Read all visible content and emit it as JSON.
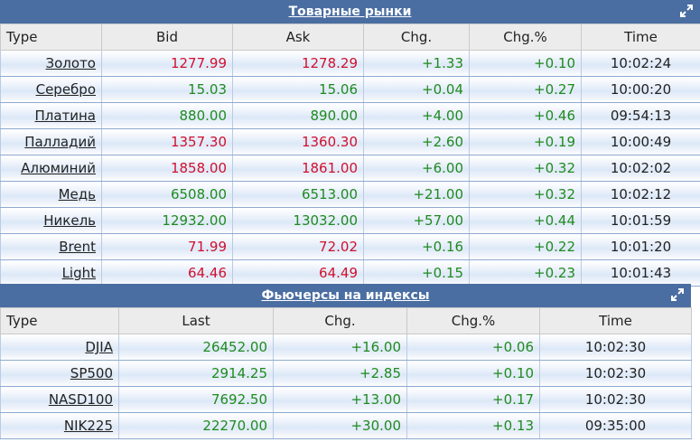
{
  "commodities": {
    "title": "Товарные рынки",
    "headers": [
      "Type",
      "Bid",
      "Ask",
      "Chg.",
      "Chg.%",
      "Time"
    ],
    "rows": [
      {
        "name": "Золото",
        "bid": "1277.99",
        "ask": "1278.29",
        "chg": "+1.33",
        "chgp": "+0.10",
        "time": "10:02:24",
        "dir": "down"
      },
      {
        "name": "Серебро",
        "bid": "15.03",
        "ask": "15.06",
        "chg": "+0.04",
        "chgp": "+0.27",
        "time": "10:00:20",
        "dir": "up"
      },
      {
        "name": "Платина",
        "bid": "880.00",
        "ask": "890.00",
        "chg": "+4.00",
        "chgp": "+0.46",
        "time": "09:54:13",
        "dir": "up"
      },
      {
        "name": "Палладий",
        "bid": "1357.30",
        "ask": "1360.30",
        "chg": "+2.60",
        "chgp": "+0.19",
        "time": "10:00:49",
        "dir": "down"
      },
      {
        "name": "Алюминий",
        "bid": "1858.00",
        "ask": "1861.00",
        "chg": "+6.00",
        "chgp": "+0.32",
        "time": "10:02:02",
        "dir": "down"
      },
      {
        "name": "Медь",
        "bid": "6508.00",
        "ask": "6513.00",
        "chg": "+21.00",
        "chgp": "+0.32",
        "time": "10:02:12",
        "dir": "up"
      },
      {
        "name": "Никель",
        "bid": "12932.00",
        "ask": "13032.00",
        "chg": "+57.00",
        "chgp": "+0.44",
        "time": "10:01:59",
        "dir": "up"
      },
      {
        "name": "Brent",
        "bid": "71.99",
        "ask": "72.02",
        "chg": "+0.16",
        "chgp": "+0.22",
        "time": "10:01:20",
        "dir": "down"
      },
      {
        "name": "Light",
        "bid": "64.46",
        "ask": "64.49",
        "chg": "+0.15",
        "chgp": "+0.23",
        "time": "10:01:43",
        "dir": "down"
      }
    ]
  },
  "futures": {
    "title": "Фьючерсы на индексы",
    "headers": [
      "Type",
      "Last",
      "Chg.",
      "Chg.%",
      "Time"
    ],
    "rows": [
      {
        "name": "DJIA",
        "last": "26452.00",
        "chg": "+16.00",
        "chgp": "+0.06",
        "time": "10:02:30",
        "dir": "up"
      },
      {
        "name": "SP500",
        "last": "2914.25",
        "chg": "+2.85",
        "chgp": "+0.10",
        "time": "10:02:30",
        "dir": "up"
      },
      {
        "name": "NASD100",
        "last": "7692.50",
        "chg": "+13.00",
        "chgp": "+0.17",
        "time": "10:02:30",
        "dir": "up"
      },
      {
        "name": "NIK225",
        "last": "22270.00",
        "chg": "+30.00",
        "chgp": "+0.13",
        "time": "09:35:00",
        "dir": "up"
      }
    ]
  },
  "colors": {
    "title_bar": "#4a6ea2",
    "up": "#1f8a1f",
    "down": "#d0102e",
    "header_bg": "#ececec"
  },
  "icons": {
    "expand": "expand-arrow-icon"
  }
}
